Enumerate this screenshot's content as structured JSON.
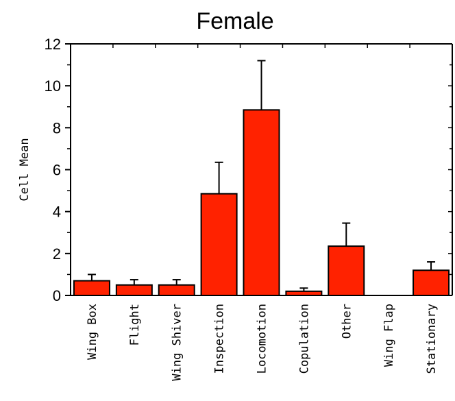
{
  "chart_data": {
    "type": "bar",
    "title": "Female",
    "xlabel": "",
    "ylabel": "Cell Mean",
    "ylim": [
      0,
      12
    ],
    "yticks": [
      0,
      2,
      4,
      6,
      8,
      10,
      12
    ],
    "categories": [
      "Wing Box",
      "Flight",
      "Wing Shiver",
      "Inspection",
      "Locomotion",
      "Copulation",
      "Other",
      "Wing Flap",
      "Stationary"
    ],
    "values": [
      0.7,
      0.5,
      0.5,
      4.85,
      8.85,
      0.2,
      2.35,
      0,
      1.2
    ],
    "error_plus": [
      0.3,
      0.25,
      0.25,
      1.5,
      2.35,
      0.15,
      1.1,
      0,
      0.4
    ],
    "bar_color": "#ff2200",
    "grid": false,
    "legend": "none"
  }
}
